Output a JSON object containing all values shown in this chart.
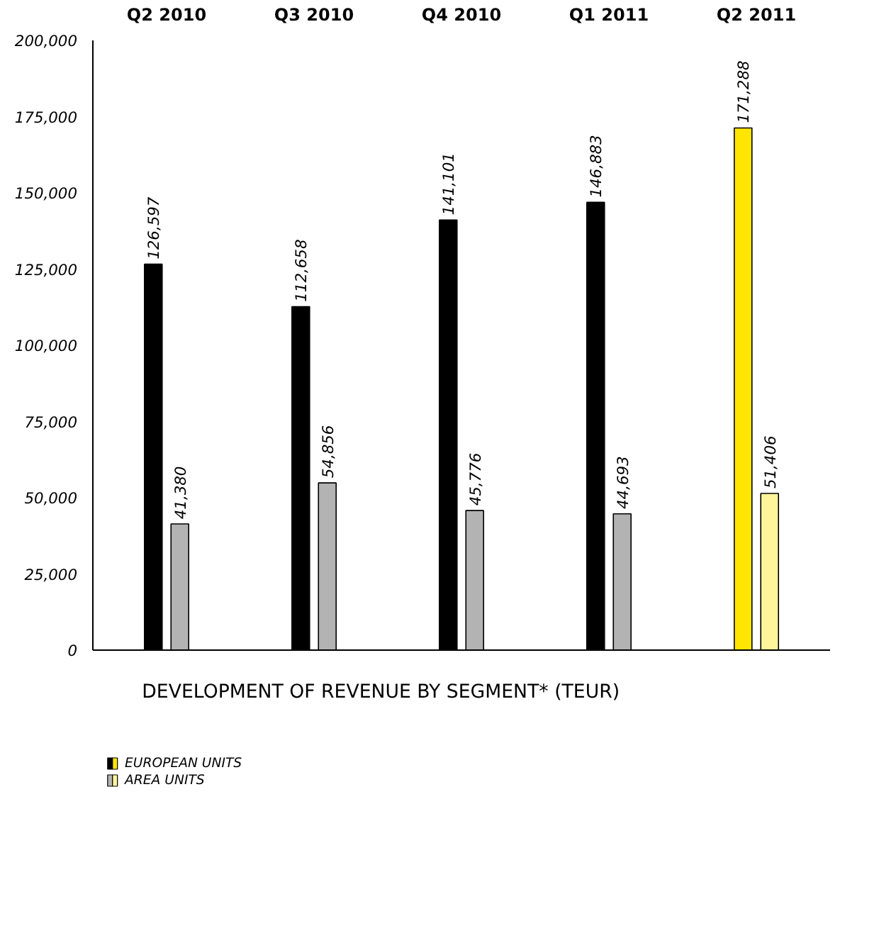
{
  "chart_data": {
    "type": "bar",
    "title": "DEVELOPMENT OF REVENUE BY SEGMENT* (TEUR)",
    "categories": [
      "Q2 2010",
      "Q3 2010",
      "Q4 2010",
      "Q1 2011",
      "Q2 2011"
    ],
    "series": [
      {
        "name": "EUROPEAN UNITS",
        "color": "#000000",
        "colors": [
          "#000000",
          "#000000",
          "#000000",
          "#000000",
          "#ffe600"
        ],
        "values": [
          126597,
          112658,
          141101,
          146883,
          171288
        ],
        "value_labels": [
          "126,597",
          "112,658",
          "141,101",
          "146,883",
          "171,288"
        ]
      },
      {
        "name": "AREA UNITS",
        "color": "#b3b3b3",
        "colors": [
          "#b3b3b3",
          "#b3b3b3",
          "#b3b3b3",
          "#b3b3b3",
          "#fff59a"
        ],
        "values": [
          41380,
          54856,
          45776,
          44693,
          51406
        ],
        "value_labels": [
          "41,380",
          "54,856",
          "45,776",
          "44,693",
          "51,406"
        ]
      }
    ],
    "ylim": [
      0,
      200000
    ],
    "yticks": [
      {
        "value": 0,
        "label": "0"
      },
      {
        "value": 25000,
        "label": "25,000"
      },
      {
        "value": 50000,
        "label": "50,000"
      },
      {
        "value": 75000,
        "label": "75,000"
      },
      {
        "value": 100000,
        "label": "100,000"
      },
      {
        "value": 125000,
        "label": "125,000"
      },
      {
        "value": 150000,
        "label": "150,000"
      },
      {
        "value": 175000,
        "label": "175,000"
      },
      {
        "value": 200000,
        "label": "200,000"
      }
    ],
    "legend": "bottom left"
  }
}
